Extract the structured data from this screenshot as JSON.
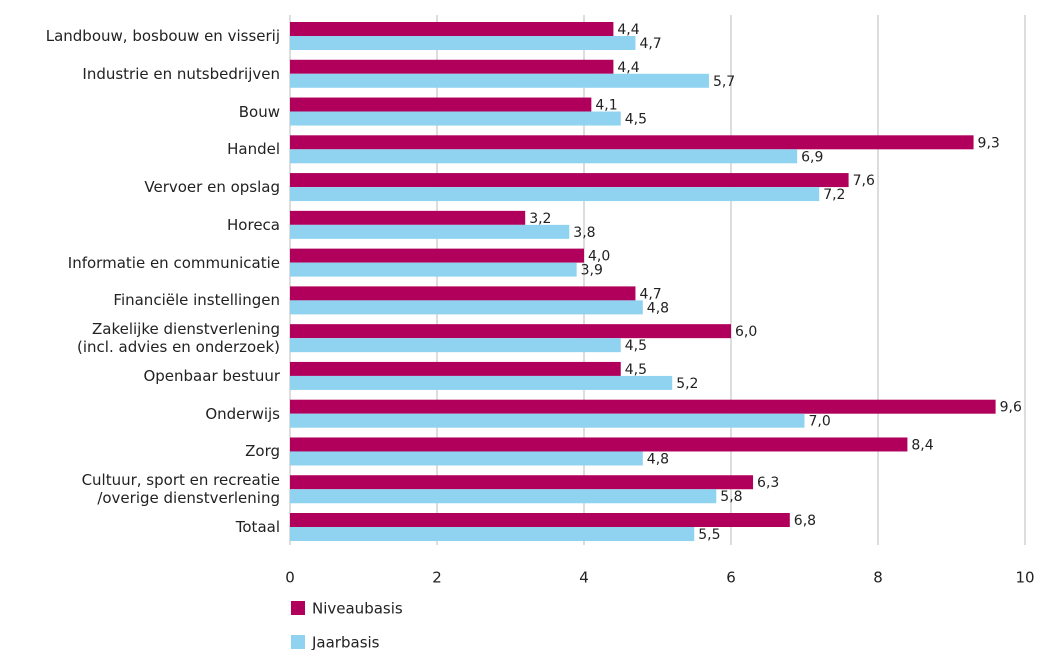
{
  "chart_data": {
    "type": "bar",
    "orientation": "horizontal",
    "categories": [
      "Landbouw, bosbouw en visserij",
      "Industrie en nutsbedrijven",
      "Bouw",
      "Handel",
      "Vervoer en opslag",
      "Horeca",
      "Informatie en communicatie",
      "Financiële instellingen",
      "Zakelijke dienstverlening\n(incl. advies en onderzoek)",
      "Openbaar bestuur",
      "Onderwijs",
      "Zorg",
      "Cultuur, sport en recreatie\n/overige dienstverlening",
      "Totaal"
    ],
    "series": [
      {
        "name": "Niveaubasis",
        "color": "#b0005b",
        "values": [
          4.4,
          4.4,
          4.1,
          9.3,
          7.6,
          3.2,
          4.0,
          4.7,
          6.0,
          4.5,
          9.6,
          8.4,
          6.3,
          6.8
        ],
        "value_labels": [
          "4,4",
          "4,4",
          "4,1",
          "9,3",
          "7,6",
          "3,2",
          "4,0",
          "4,7",
          "6,0",
          "4,5",
          "9,6",
          "8,4",
          "6,3",
          "6,8"
        ]
      },
      {
        "name": "Jaarbasis",
        "color": "#8fd3f0",
        "values": [
          4.7,
          5.7,
          4.5,
          6.9,
          7.2,
          3.8,
          3.9,
          4.8,
          4.5,
          5.2,
          7.0,
          4.8,
          5.8,
          5.5
        ],
        "value_labels": [
          "4,7",
          "5,7",
          "4,5",
          "6,9",
          "7,2",
          "3,8",
          "3,9",
          "4,8",
          "4,5",
          "5,2",
          "7,0",
          "4,8",
          "5,8",
          "5,5"
        ]
      }
    ],
    "xlim": [
      0,
      10
    ],
    "xticks": [
      0,
      2,
      4,
      6,
      8,
      10
    ],
    "grid": true,
    "legend": "bottom-left"
  }
}
